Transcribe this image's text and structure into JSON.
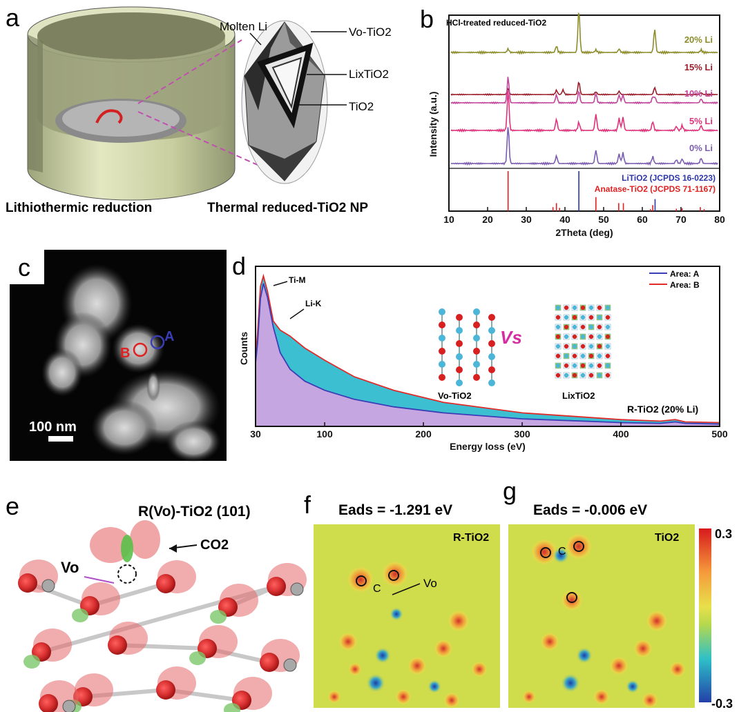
{
  "panels": {
    "a": {
      "label": "a",
      "molten_li": "Molten Li",
      "vo_tio2": "Vo-TiO2",
      "lixtio2": "LixTiO2",
      "tio2": "TiO2",
      "caption_left": "Lithiothermic reduction",
      "caption_right": "Thermal reduced-TiO2 NP"
    },
    "b": {
      "label": "b"
    },
    "c": {
      "label": "c",
      "ring_a": "A",
      "ring_b": "B",
      "scalebar": "100 nm"
    },
    "d": {
      "label": "d",
      "annot_ti": "Ti-M",
      "annot_li": "Li-K",
      "vs": "Vs",
      "struct_left": "Vo-TiO2",
      "struct_right": "LixTiO2",
      "sample": "R-TiO2 (20% Li)"
    },
    "e": {
      "label": "e",
      "title": "R(Vo)-TiO2 (101)",
      "co2": "CO2",
      "vo": "Vo"
    },
    "f": {
      "label": "f",
      "eads": "Eads = -1.291 eV",
      "map_label": "R-TiO2",
      "vo": "Vo",
      "atom_c": "C"
    },
    "g": {
      "label": "g",
      "eads": "Eads = -0.006 eV",
      "map_label": "TiO2",
      "atom_c": "C"
    },
    "colorbar": {
      "max": "0.3",
      "min": "-0.3"
    }
  },
  "chart_data": [
    {
      "panel": "b",
      "type": "line",
      "title": "HCl-treated reduced-TiO2",
      "xlabel": "2Theta (deg)",
      "ylabel": "Intensity (a.u.)",
      "xlim": [
        10,
        80
      ],
      "xticks": [
        10,
        20,
        30,
        40,
        50,
        60,
        70,
        80
      ],
      "series": [
        {
          "name": "20% Li",
          "color": "#8c8c2a",
          "peaks": [
            [
              25.3,
              0.08
            ],
            [
              37.8,
              0.15
            ],
            [
              43.6,
              1.0
            ],
            [
              48,
              0.06
            ],
            [
              54,
              0.08
            ],
            [
              63.2,
              0.55
            ],
            [
              75.2,
              0.06
            ]
          ]
        },
        {
          "name": "15% Li",
          "color": "#9b1c28",
          "peaks": [
            [
              25.3,
              0.25
            ],
            [
              37.8,
              0.18
            ],
            [
              39.5,
              0.2
            ],
            [
              43.6,
              0.55
            ],
            [
              48,
              0.12
            ],
            [
              54,
              0.14
            ],
            [
              63.2,
              0.3
            ],
            [
              75.2,
              0.08
            ]
          ]
        },
        {
          "name": "10% Li",
          "color": "#c1439b",
          "peaks": [
            [
              25.3,
              1.0
            ],
            [
              37.8,
              0.3
            ],
            [
              43.6,
              0.45
            ],
            [
              48,
              0.35
            ],
            [
              54,
              0.3
            ],
            [
              55,
              0.3
            ],
            [
              62.7,
              0.22
            ],
            [
              63.3,
              0.2
            ],
            [
              75.2,
              0.15
            ]
          ]
        },
        {
          "name": "5% Li",
          "color": "#e0317a",
          "peaks": [
            [
              25.3,
              1.0
            ],
            [
              37.8,
              0.28
            ],
            [
              43.6,
              0.2
            ],
            [
              48,
              0.4
            ],
            [
              54,
              0.3
            ],
            [
              55,
              0.33
            ],
            [
              62.7,
              0.22
            ],
            [
              68.8,
              0.1
            ],
            [
              70.3,
              0.12
            ],
            [
              75.2,
              0.12
            ]
          ]
        },
        {
          "name": "0% Li",
          "color": "#7a5cb0",
          "peaks": [
            [
              25.3,
              1.0
            ],
            [
              37.8,
              0.2
            ],
            [
              48,
              0.35
            ],
            [
              54,
              0.25
            ],
            [
              55,
              0.28
            ],
            [
              62.7,
              0.18
            ],
            [
              68.8,
              0.1
            ],
            [
              70.3,
              0.12
            ],
            [
              75.2,
              0.14
            ]
          ]
        }
      ],
      "references": [
        {
          "name": "LiTiO2 (JCPDS 16-0223)",
          "color": "#2b35a8",
          "lines": [
            [
              43.6,
              1.0
            ],
            [
              63.3,
              0.3
            ]
          ]
        },
        {
          "name": "Anatase-TiO2 (JCPDS 71-1167)",
          "color": "#e02020",
          "lines": [
            [
              25.3,
              1.0
            ],
            [
              36.9,
              0.1
            ],
            [
              37.8,
              0.2
            ],
            [
              38.6,
              0.08
            ],
            [
              48.0,
              0.35
            ],
            [
              53.9,
              0.2
            ],
            [
              55.1,
              0.2
            ],
            [
              62.1,
              0.05
            ],
            [
              62.7,
              0.15
            ],
            [
              68.8,
              0.06
            ],
            [
              70.3,
              0.07
            ],
            [
              75.0,
              0.1
            ],
            [
              76.0,
              0.05
            ]
          ]
        }
      ]
    },
    {
      "panel": "d",
      "type": "area",
      "xlabel": "Energy loss (eV)",
      "ylabel": "Counts",
      "xlim": [
        30,
        500
      ],
      "xticks": [
        30,
        100,
        200,
        300,
        400,
        500
      ],
      "legend_position": "top-right",
      "series": [
        {
          "name": "Area: A",
          "color": "#3b3db6",
          "fill": "#c6a6e0",
          "x": [
            30,
            32,
            35,
            38,
            42,
            48,
            55,
            65,
            80,
            100,
            130,
            170,
            220,
            300,
            400,
            440,
            455,
            465,
            500
          ],
          "y": [
            0.42,
            0.55,
            0.85,
            0.95,
            0.86,
            0.66,
            0.49,
            0.38,
            0.3,
            0.24,
            0.18,
            0.13,
            0.09,
            0.05,
            0.025,
            0.02,
            0.03,
            0.02,
            0.015
          ]
        },
        {
          "name": "Area: B",
          "color": "#e02b2b",
          "fill": "#3cbfd0",
          "x": [
            30,
            32,
            35,
            38,
            42,
            48,
            55,
            65,
            80,
            100,
            130,
            170,
            220,
            300,
            400,
            440,
            455,
            465,
            500
          ],
          "y": [
            0.45,
            0.62,
            0.93,
            1.0,
            0.9,
            0.7,
            0.64,
            0.6,
            0.52,
            0.44,
            0.33,
            0.24,
            0.16,
            0.09,
            0.045,
            0.035,
            0.045,
            0.03,
            0.025
          ]
        }
      ]
    }
  ]
}
